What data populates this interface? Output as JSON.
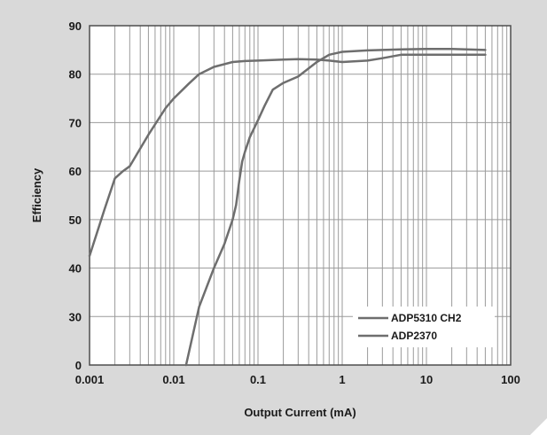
{
  "chart_data": {
    "type": "line",
    "xlabel": "Output Current (mA)",
    "ylabel": "Efficiency",
    "x_scale": "log",
    "xlim": [
      0.001,
      100
    ],
    "ylim": [
      0,
      90
    ],
    "x_ticks": [
      0.001,
      0.01,
      0.1,
      1,
      10,
      100
    ],
    "x_tick_labels": [
      "0.001",
      "0.01",
      "0.1",
      "1",
      "10",
      "100"
    ],
    "y_ticks": [
      0,
      30,
      40,
      50,
      60,
      70,
      80,
      90
    ],
    "y_tick_labels": [
      "0",
      "30",
      "40",
      "50",
      "60",
      "70",
      "80",
      "90"
    ],
    "y_axis_note": "axis jumps from 0 to 30; spacing between 0 and 30 equals one 10-unit step",
    "grid": true,
    "legend_position": "bottom-right",
    "series_color": "#6e6e6e",
    "frame_color": "#d9d9d9",
    "series": [
      {
        "name": "ADP5310 CH2",
        "x": [
          0.001,
          0.0015,
          0.002,
          0.0025,
          0.003,
          0.005,
          0.008,
          0.01,
          0.015,
          0.02,
          0.03,
          0.05,
          0.07,
          0.1,
          0.2,
          0.3,
          0.5,
          0.7,
          1,
          2,
          3,
          5,
          10,
          20,
          50
        ],
        "y": [
          42.5,
          52,
          58.5,
          60,
          61,
          67.5,
          73,
          75,
          78,
          80,
          81.5,
          82.5,
          82.7,
          82.8,
          83,
          83.1,
          83,
          82.8,
          82.5,
          82.8,
          83.3,
          84,
          84,
          84,
          84
        ]
      },
      {
        "name": "ADP2370",
        "x": [
          0.014,
          0.02,
          0.03,
          0.04,
          0.05,
          0.055,
          0.06,
          0.065,
          0.07,
          0.08,
          0.1,
          0.12,
          0.15,
          0.2,
          0.3,
          0.5,
          0.7,
          1,
          2,
          3,
          5,
          10,
          20,
          50
        ],
        "y": [
          0,
          32,
          40,
          45,
          50,
          53,
          58,
          62,
          64,
          67,
          70.5,
          73.5,
          76.8,
          78.2,
          79.5,
          82.5,
          84,
          84.6,
          84.9,
          85,
          85.1,
          85.2,
          85.2,
          85
        ]
      }
    ]
  }
}
